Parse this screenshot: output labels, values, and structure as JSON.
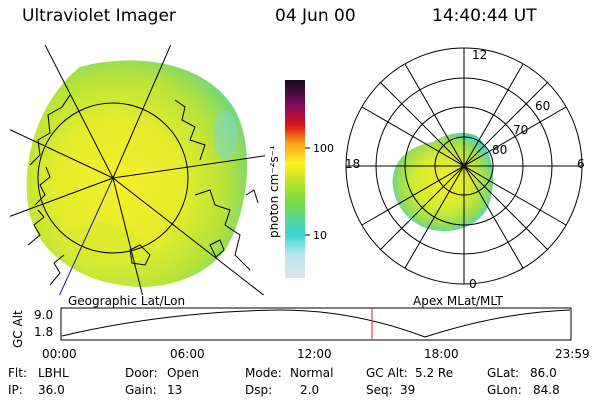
{
  "header": {
    "title": "Ultraviolet Imager",
    "date": "04 Jun 00",
    "time": "14:40:44 UT"
  },
  "left_panel": {
    "caption": "Geographic Lat/Lon"
  },
  "right_panel": {
    "caption": "Apex MLat/MLT",
    "mlt_labels": {
      "top": "12",
      "left": "18",
      "right": "6",
      "bottom": "0"
    },
    "lat_labels": [
      "60",
      "70",
      "80"
    ]
  },
  "colorbar": {
    "unit_label": "photon cm⁻²s⁻¹",
    "ticks": [
      "100",
      "10"
    ],
    "scale": "log",
    "colors": [
      "#dfe3e7",
      "#37d6d4",
      "#b6e42a",
      "#fff21f",
      "#f7a21a",
      "#d8151e",
      "#7a0a5e",
      "#140a1c"
    ]
  },
  "timeline": {
    "ylabel": "GC Alt",
    "yticks": [
      "9.0",
      "1.8"
    ],
    "xticks": [
      "00:00",
      "06:00",
      "12:00",
      "18:00",
      "23:59"
    ],
    "marker_time_hours": 14.68,
    "marker_color": "#e0201c"
  },
  "info": {
    "flt_label": "Flt:",
    "flt_value": "LBHL",
    "ip_label": "IP:",
    "ip_value": "36.0",
    "door_label": "Door:",
    "door_value": "Open",
    "gain_label": "Gain:",
    "gain_value": "13",
    "mode_label": "Mode:",
    "mode_value": "Normal",
    "dsp_label": "Dsp:",
    "dsp_value": "2.0",
    "gcalt_label": "GC Alt:",
    "gcalt_value": "5.2 Re",
    "seq_label": "Seq:",
    "seq_value": "39",
    "glat_label": "GLat:",
    "glat_value": "86.0",
    "glon_label": "GLon:",
    "glon_value": "84.8"
  }
}
